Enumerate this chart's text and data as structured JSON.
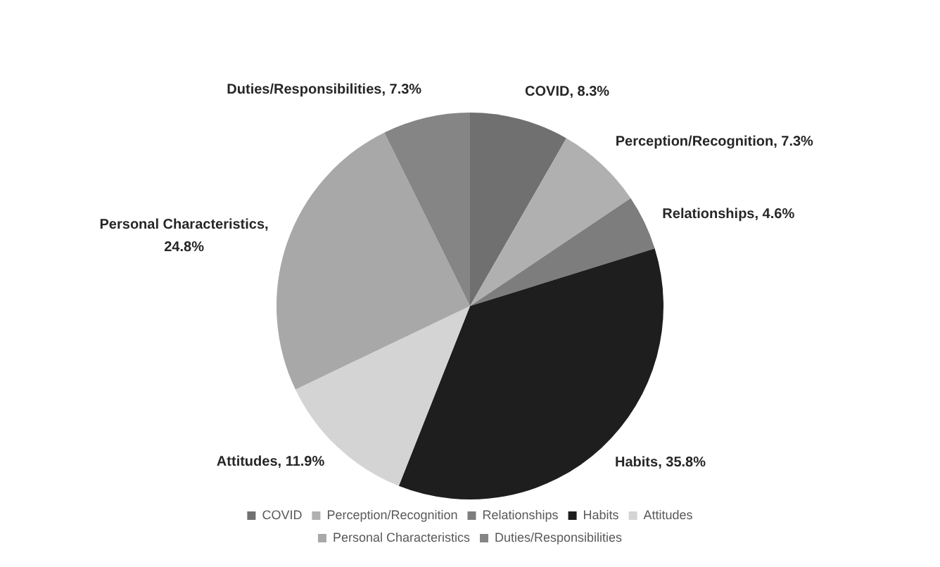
{
  "chart_data": {
    "type": "pie",
    "categories": [
      "COVID",
      "Perception/Recognition",
      "Relationships",
      "Habits",
      "Attitudes",
      "Personal Characteristics",
      "Duties/Responsibilities"
    ],
    "values": [
      8.3,
      7.3,
      4.6,
      35.8,
      11.9,
      24.8,
      7.3
    ],
    "value_labels": [
      "COVID, 8.3%",
      "Perception/Recognition, 7.3%",
      "Relationships, 4.6%",
      "Habits, 35.8%",
      "Attitudes, 11.9%",
      "Personal Characteristics, 24.8%",
      "Duties/Responsibilities, 7.3%"
    ],
    "colors": [
      "#707070",
      "#b0b0b0",
      "#7d7d7d",
      "#1e1e1e",
      "#d4d4d4",
      "#a8a8a8",
      "#858585"
    ],
    "legend": "bottom"
  }
}
